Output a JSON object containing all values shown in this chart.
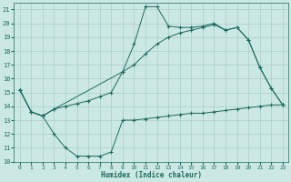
{
  "title": "",
  "xlabel": "Humidex (Indice chaleur)",
  "ylabel": "",
  "xlim": [
    -0.5,
    23.5
  ],
  "ylim": [
    10,
    21.5
  ],
  "yticks": [
    10,
    11,
    12,
    13,
    14,
    15,
    16,
    17,
    18,
    19,
    20,
    21
  ],
  "xticks": [
    0,
    1,
    2,
    3,
    4,
    5,
    6,
    7,
    8,
    9,
    10,
    11,
    12,
    13,
    14,
    15,
    16,
    17,
    18,
    19,
    20,
    21,
    22,
    23
  ],
  "bg_color": "#cce8e4",
  "line_color": "#1a6b5e",
  "grid_color": "#aaccc8",
  "line1_x": [
    0,
    1,
    2,
    3,
    4,
    5,
    6,
    7,
    8,
    9,
    10,
    11,
    12,
    13,
    14,
    15,
    16,
    17,
    18,
    19,
    20,
    21,
    22,
    23
  ],
  "line1_y": [
    15.2,
    13.6,
    13.3,
    13.8,
    14.0,
    14.2,
    14.4,
    14.7,
    15.0,
    16.5,
    18.5,
    21.2,
    21.2,
    19.8,
    19.7,
    19.7,
    19.8,
    20.0,
    19.5,
    19.7,
    18.8,
    16.8,
    15.3,
    14.1
  ],
  "line2_x": [
    0,
    1,
    2,
    3,
    9,
    10,
    11,
    12,
    13,
    14,
    15,
    16,
    17,
    18,
    19,
    20,
    21,
    22,
    23
  ],
  "line2_y": [
    15.2,
    13.6,
    13.3,
    13.8,
    16.5,
    17.0,
    17.8,
    18.5,
    19.0,
    19.3,
    19.5,
    19.7,
    19.9,
    19.5,
    19.7,
    18.8,
    16.8,
    15.3,
    14.1
  ],
  "line3_x": [
    0,
    1,
    2,
    3,
    4,
    5,
    6,
    7,
    8,
    9,
    10,
    11,
    12,
    13,
    14,
    15,
    16,
    17,
    18,
    19,
    20,
    21,
    22,
    23
  ],
  "line3_y": [
    15.2,
    13.6,
    13.3,
    12.0,
    11.0,
    10.4,
    10.4,
    10.4,
    10.7,
    13.0,
    13.0,
    13.1,
    13.2,
    13.3,
    13.4,
    13.5,
    13.5,
    13.6,
    13.7,
    13.8,
    13.9,
    14.0,
    14.1,
    14.1
  ]
}
